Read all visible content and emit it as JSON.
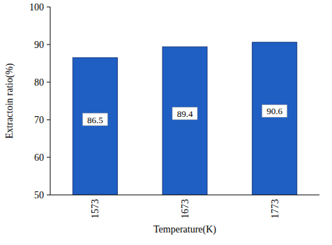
{
  "chart_data": {
    "type": "bar",
    "x_label": "Temperature(K)",
    "y_label": "Extractoin ratio(%)",
    "categories": [
      "1573",
      "1673",
      "1773"
    ],
    "values": [
      86.5,
      89.4,
      90.6
    ],
    "color": "#1f5fc4",
    "ylim": [
      50,
      100
    ],
    "yticks": [
      50,
      60,
      70,
      80,
      90,
      100
    ],
    "data_labels": true,
    "grid": false
  }
}
